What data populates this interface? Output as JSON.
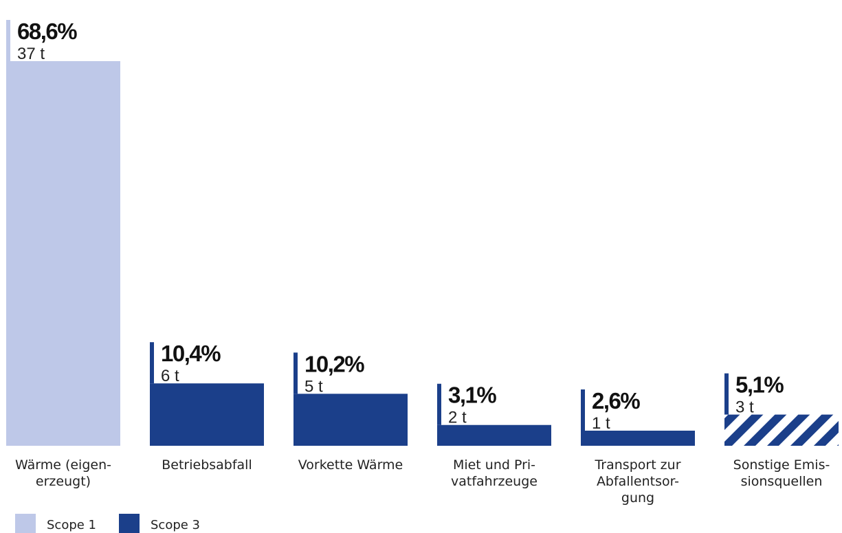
{
  "colors": {
    "scope1": "#bec8e8",
    "scope3": "#1b3f8a",
    "label_text": "#111111"
  },
  "legend": [
    {
      "label": "Scope 1",
      "color": "#bec8e8"
    },
    {
      "label": "Scope 3",
      "color": "#1b3f8a"
    }
  ],
  "chart_data": {
    "type": "bar",
    "title": "",
    "xlabel": "",
    "ylabel": "",
    "unit": "t",
    "ylim": [
      0,
      37
    ],
    "legend_position": "bottom-left",
    "grid": false,
    "categories": [
      [
        "Wärme (eigen-",
        "erzeugt)"
      ],
      [
        "Betriebsabfall"
      ],
      [
        "Vorkette Wärme"
      ],
      [
        "Miet und Pri-",
        "vatfahrzeuge"
      ],
      [
        "Transport zur",
        "Abfallentsor-",
        "gung"
      ],
      [
        "Sonstige Emis-",
        "sionsquellen"
      ]
    ],
    "bars": [
      {
        "percent": "68,6%",
        "value_label": "37 t",
        "value": 37,
        "scope": "Scope 1",
        "hatched": false
      },
      {
        "percent": "10,4%",
        "value_label": "6 t",
        "value": 6,
        "scope": "Scope 3",
        "hatched": false
      },
      {
        "percent": "10,2%",
        "value_label": "5 t",
        "value": 5,
        "scope": "Scope 3",
        "hatched": false
      },
      {
        "percent": "3,1%",
        "value_label": "2 t",
        "value": 2,
        "scope": "Scope 3",
        "hatched": false
      },
      {
        "percent": "2,6%",
        "value_label": "1 t",
        "value": 1,
        "scope": "Scope 3",
        "hatched": false
      },
      {
        "percent": "5,1%",
        "value_label": "3 t",
        "value": 3,
        "scope": "Scope 3",
        "hatched": true
      }
    ]
  }
}
